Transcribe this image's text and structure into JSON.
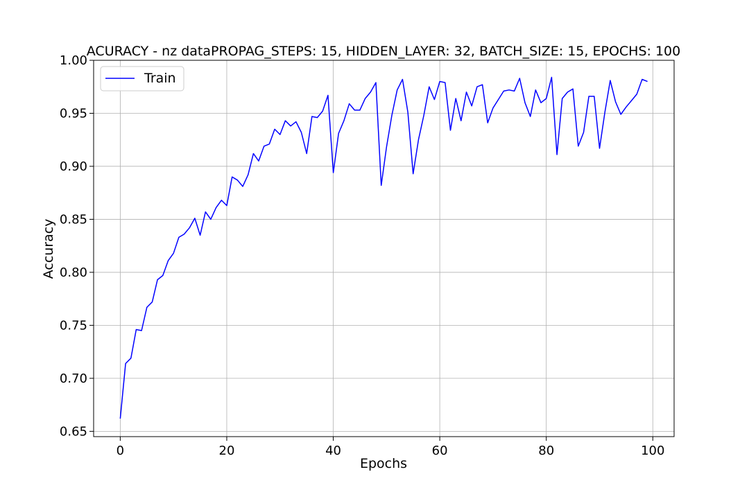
{
  "chart_data": {
    "type": "line",
    "title": "ACURACY - nz dataPROPAG_STEPS: 15, HIDDEN_LAYER: 32, BATCH_SIZE: 15, EPOCHS: 100",
    "xlabel": "Epochs",
    "ylabel": "Accuracy",
    "xlim": [
      -5,
      104
    ],
    "ylim": [
      0.645,
      1.0
    ],
    "xticks": [
      0,
      20,
      40,
      60,
      80,
      100
    ],
    "xtick_labels": [
      "0",
      "20",
      "40",
      "60",
      "80",
      "100"
    ],
    "yticks": [
      0.65,
      0.7,
      0.75,
      0.8,
      0.85,
      0.9,
      0.95,
      1.0
    ],
    "ytick_labels": [
      "0.65",
      "0.70",
      "0.75",
      "0.80",
      "0.85",
      "0.90",
      "0.95",
      "1.00"
    ],
    "grid": true,
    "legend_position": "upper-left",
    "series": [
      {
        "name": "Train",
        "color": "#0000ff",
        "x": [
          0,
          1,
          2,
          3,
          4,
          5,
          6,
          7,
          8,
          9,
          10,
          11,
          12,
          13,
          14,
          15,
          16,
          17,
          18,
          19,
          20,
          21,
          22,
          23,
          24,
          25,
          26,
          27,
          28,
          29,
          30,
          31,
          32,
          33,
          34,
          35,
          36,
          37,
          38,
          39,
          40,
          41,
          42,
          43,
          44,
          45,
          46,
          47,
          48,
          49,
          50,
          51,
          52,
          53,
          54,
          55,
          56,
          57,
          58,
          59,
          60,
          61,
          62,
          63,
          64,
          65,
          66,
          67,
          68,
          69,
          70,
          71,
          72,
          73,
          74,
          75,
          76,
          77,
          78,
          79,
          80,
          81,
          82,
          83,
          84,
          85,
          86,
          87,
          88,
          89,
          90,
          91,
          92,
          93,
          94,
          95,
          96,
          97,
          98,
          99
        ],
        "values": [
          0.662,
          0.714,
          0.719,
          0.746,
          0.745,
          0.767,
          0.772,
          0.793,
          0.797,
          0.811,
          0.818,
          0.833,
          0.836,
          0.842,
          0.851,
          0.835,
          0.857,
          0.85,
          0.861,
          0.868,
          0.863,
          0.89,
          0.887,
          0.881,
          0.892,
          0.912,
          0.905,
          0.919,
          0.921,
          0.935,
          0.93,
          0.943,
          0.938,
          0.942,
          0.932,
          0.912,
          0.947,
          0.946,
          0.952,
          0.967,
          0.894,
          0.931,
          0.943,
          0.959,
          0.953,
          0.953,
          0.964,
          0.97,
          0.979,
          0.882,
          0.918,
          0.948,
          0.972,
          0.982,
          0.951,
          0.893,
          0.925,
          0.948,
          0.975,
          0.963,
          0.98,
          0.979,
          0.934,
          0.964,
          0.943,
          0.97,
          0.957,
          0.975,
          0.977,
          0.941,
          0.955,
          0.963,
          0.971,
          0.972,
          0.971,
          0.983,
          0.96,
          0.947,
          0.972,
          0.96,
          0.964,
          0.984,
          0.911,
          0.964,
          0.97,
          0.973,
          0.919,
          0.932,
          0.966,
          0.966,
          0.917,
          0.951,
          0.981,
          0.961,
          0.949,
          0.956,
          0.962,
          0.968,
          0.982,
          0.98
        ]
      }
    ]
  }
}
